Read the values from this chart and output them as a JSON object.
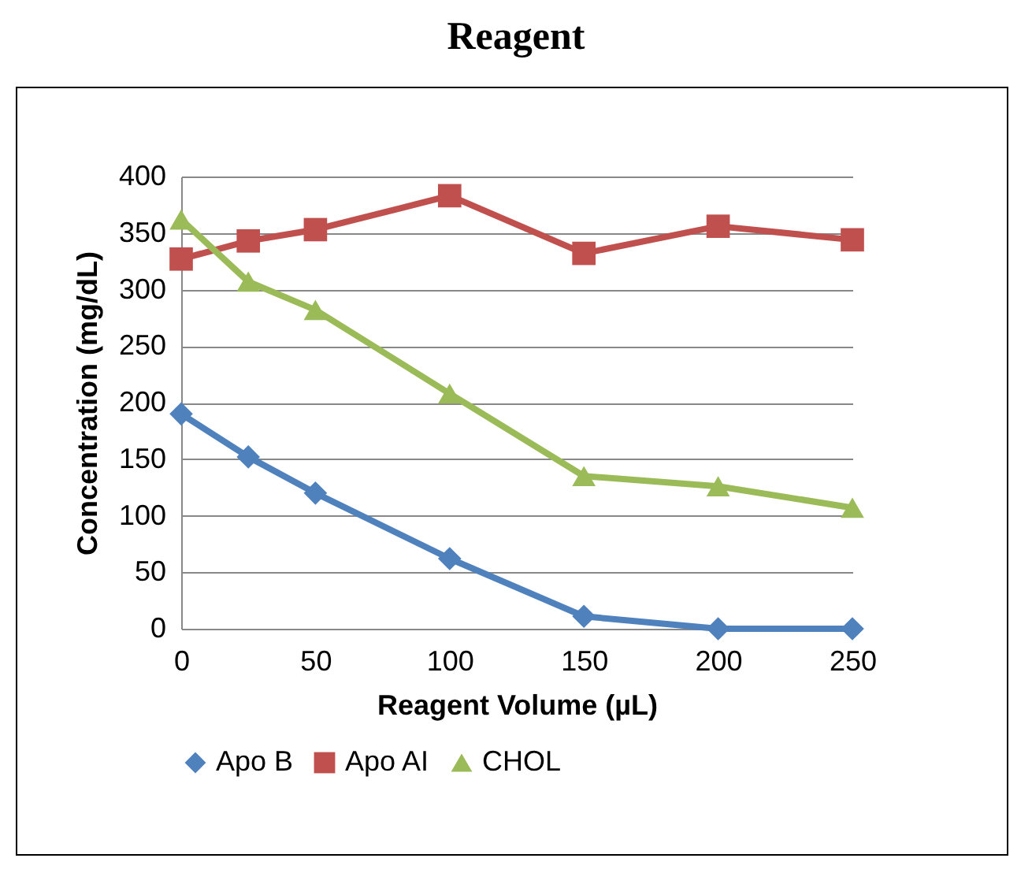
{
  "chart_data": {
    "type": "line",
    "title": "Reagent",
    "xlabel": "Reagent Volume (µL)",
    "ylabel": "Concentration (mg/dL)",
    "x": [
      0,
      25,
      50,
      100,
      150,
      200,
      250
    ],
    "xlim": [
      0,
      250
    ],
    "xticks": [
      0,
      50,
      100,
      150,
      200,
      250
    ],
    "ylim": [
      0,
      400
    ],
    "yticks": [
      0,
      50,
      100,
      150,
      200,
      250,
      300,
      350,
      400
    ],
    "grid": "y",
    "legend": "bottom",
    "line_style": "solid",
    "series": [
      {
        "name": "Apo B",
        "color": "#4f81bd",
        "marker": "diamond",
        "values": [
          190,
          152,
          120,
          62,
          11,
          0,
          0
        ]
      },
      {
        "name": "Apo AI",
        "color": "#c0504d",
        "marker": "square",
        "values": [
          327,
          343,
          353,
          383,
          332,
          356,
          344
        ]
      },
      {
        "name": "CHOL",
        "color": "#9bbb59",
        "marker": "triangle",
        "values": [
          362,
          307,
          282,
          208,
          135,
          126,
          107
        ]
      }
    ]
  }
}
